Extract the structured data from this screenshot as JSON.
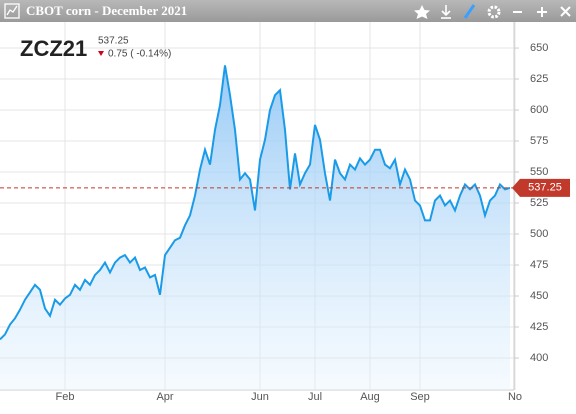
{
  "title": "CBOT corn - December 2021",
  "chart_data": {
    "type": "area",
    "symbol": "ZCZ21",
    "last_value": 537.25,
    "change": "0.75 ( -0.14%)",
    "color": "#1a9be8",
    "categories": [
      null,
      null,
      null,
      null,
      null,
      null,
      null,
      null,
      null,
      null,
      null,
      null,
      null,
      "Feb",
      null,
      null,
      null,
      null,
      null,
      null,
      null,
      null,
      null,
      null,
      null,
      null,
      null,
      null,
      null,
      null,
      null,
      null,
      null,
      "Apr",
      null,
      null,
      null,
      null,
      null,
      null,
      null,
      null,
      null,
      null,
      null,
      null,
      null,
      null,
      null,
      null,
      null,
      null,
      "Jun",
      null,
      null,
      null,
      null,
      null,
      null,
      null,
      null,
      null,
      null,
      "Jul",
      null,
      null,
      null,
      null,
      null,
      null,
      null,
      null,
      null,
      null,
      "Aug",
      null,
      null,
      null,
      null,
      null,
      null,
      null,
      null,
      null,
      "Sep",
      null,
      null,
      null,
      null,
      null,
      null,
      null,
      null,
      null,
      null,
      null,
      null,
      null,
      null,
      null,
      null,
      null,
      null,
      "No"
    ],
    "values": [
      415,
      419,
      427,
      432,
      439,
      447,
      453,
      459,
      455,
      440,
      434,
      447,
      443,
      448,
      451,
      459,
      455,
      463,
      459,
      467,
      471,
      477,
      469,
      477,
      481,
      483,
      477,
      481,
      471,
      473,
      465,
      467,
      451,
      483,
      489,
      495,
      497,
      507,
      515,
      531,
      552,
      568,
      556,
      584,
      604,
      636,
      612,
      584,
      544,
      549,
      544,
      519,
      560,
      576,
      600,
      612,
      616,
      584,
      536,
      565,
      540,
      549,
      556,
      588,
      576,
      549,
      527,
      560,
      549,
      544,
      556,
      552,
      561,
      556,
      560,
      568,
      568,
      556,
      553,
      560,
      540,
      552,
      544,
      527,
      523,
      511,
      511,
      527,
      531,
      523,
      527,
      519,
      531,
      540,
      536,
      540,
      531,
      515,
      527,
      531,
      540,
      536,
      537.25,
      null
    ],
    "ylim": [
      374.2,
      671
    ],
    "yticks": [
      400,
      425,
      450,
      475,
      500,
      525,
      550,
      575,
      600,
      625,
      650
    ],
    "grid": true
  }
}
